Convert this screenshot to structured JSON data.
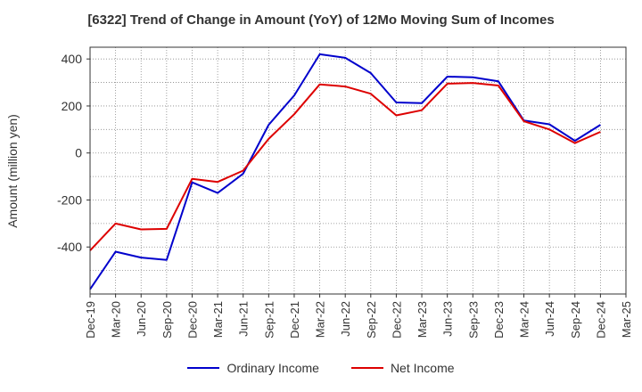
{
  "chart_data": {
    "type": "line",
    "title": "[6322]  Trend of Change in Amount (YoY) of 12Mo Moving Sum of Incomes",
    "ylabel": "Amount (million yen)",
    "xlabel": "",
    "ylim": [
      -600,
      450
    ],
    "yticks": [
      -400,
      -200,
      0,
      200,
      400
    ],
    "grid": true,
    "legend_position": "bottom",
    "categories": [
      "Dec-19",
      "Mar-20",
      "Jun-20",
      "Sep-20",
      "Dec-20",
      "Mar-21",
      "Jun-21",
      "Sep-21",
      "Dec-21",
      "Mar-22",
      "Jun-22",
      "Sep-22",
      "Dec-22",
      "Mar-23",
      "Jun-23",
      "Sep-23",
      "Dec-23",
      "Mar-24",
      "Jun-24",
      "Sep-24",
      "Dec-24",
      "Mar-25"
    ],
    "series": [
      {
        "name": "Ordinary Income",
        "color": "#0000cc",
        "values": [
          -580,
          -420,
          -445,
          -455,
          -125,
          -170,
          -88,
          120,
          245,
          420,
          405,
          340,
          215,
          212,
          325,
          322,
          305,
          138,
          122,
          52,
          120,
          null
        ]
      },
      {
        "name": "Net Income",
        "color": "#dd0000",
        "values": [
          -415,
          -300,
          -325,
          -323,
          -110,
          -123,
          -75,
          60,
          165,
          292,
          283,
          252,
          160,
          182,
          295,
          298,
          287,
          135,
          100,
          42,
          90,
          null
        ]
      }
    ]
  }
}
